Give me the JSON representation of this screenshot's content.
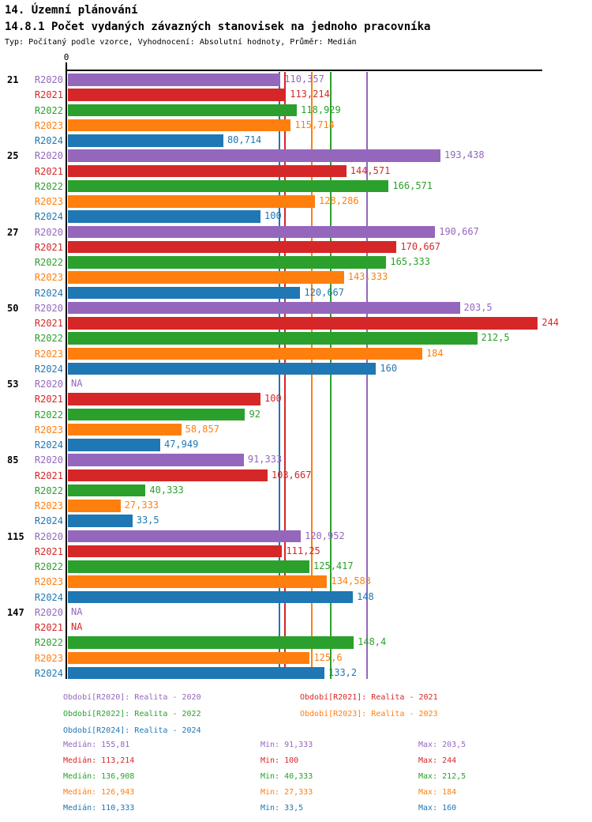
{
  "header": {
    "title": "14. Územní plánování",
    "subtitle": "14.8.1 Počet vydaných závazných stanovisek na jednoho pracovníka",
    "meta": "Typ: Počítaný podle vzorce, Vyhodnocení: Absolutní hodnoty, Průměr: Medián"
  },
  "chart_data": {
    "type": "bar",
    "orientation": "horizontal",
    "value_axis": {
      "zero_label": "0",
      "min": 0,
      "data_max": 244
    },
    "grid": "median-reference-lines-per-series",
    "legend_position": "bottom",
    "categories": [
      "21",
      "25",
      "27",
      "50",
      "53",
      "85",
      "115",
      "147"
    ],
    "na_label": "NA",
    "series": [
      {
        "name": "R2020",
        "color": "#9467bd",
        "legend": "Období[R2020]: Realita - 2020",
        "values": [
          110.357,
          193.438,
          190.667,
          203.5,
          null,
          91.333,
          120.952,
          null
        ],
        "value_labels": [
          "110,357",
          "193,438",
          "190,667",
          "203,5",
          "NA",
          "91,333",
          "120,952",
          "NA"
        ],
        "median": 155.81,
        "stats": {
          "median": "Medián: 155,81",
          "min": "Min: 91,333",
          "max": "Max: 203,5"
        }
      },
      {
        "name": "R2021",
        "color": "#d62728",
        "legend": "Období[R2021]: Realita - 2021",
        "values": [
          113.214,
          144.571,
          170.667,
          244,
          100,
          103.667,
          111.25,
          null
        ],
        "value_labels": [
          "113,214",
          "144,571",
          "170,667",
          "244",
          "100",
          "103,667",
          "111,25",
          "NA"
        ],
        "median": 113.214,
        "stats": {
          "median": "Medián: 113,214",
          "min": "Min: 100",
          "max": "Max: 244"
        }
      },
      {
        "name": "R2022",
        "color": "#2ca02c",
        "legend": "Období[R2022]: Realita - 2022",
        "values": [
          118.929,
          166.571,
          165.333,
          212.5,
          92,
          40.333,
          125.417,
          148.4
        ],
        "value_labels": [
          "118,929",
          "166,571",
          "165,333",
          "212,5",
          "92",
          "40,333",
          "125,417",
          "148,4"
        ],
        "median": 136.908,
        "stats": {
          "median": "Medián: 136,908",
          "min": "Min: 40,333",
          "max": "Max: 212,5"
        }
      },
      {
        "name": "R2023",
        "color": "#ff7f0e",
        "legend": "Období[R2023]: Realita - 2023",
        "values": [
          115.714,
          128.286,
          143.333,
          184,
          58.857,
          27.333,
          134.583,
          125.6
        ],
        "value_labels": [
          "115,714",
          "128,286",
          "143,333",
          "184",
          "58,857",
          "27,333",
          "134,583",
          "125,6"
        ],
        "median": 126.943,
        "stats": {
          "median": "Medián: 126,943",
          "min": "Min: 27,333",
          "max": "Max: 184"
        }
      },
      {
        "name": "R2024",
        "color": "#1f77b4",
        "legend": "Období[R2024]: Realita - 2024",
        "values": [
          80.714,
          100,
          120.667,
          160,
          47.949,
          33.5,
          148,
          133.2
        ],
        "value_labels": [
          "80,714",
          "100",
          "120,667",
          "160",
          "47,949",
          "33,5",
          "148",
          "133,2"
        ],
        "median": 110.333,
        "stats": {
          "median": "Medián: 110,333",
          "min": "Min: 33,5",
          "max": "Max: 160"
        }
      }
    ]
  }
}
